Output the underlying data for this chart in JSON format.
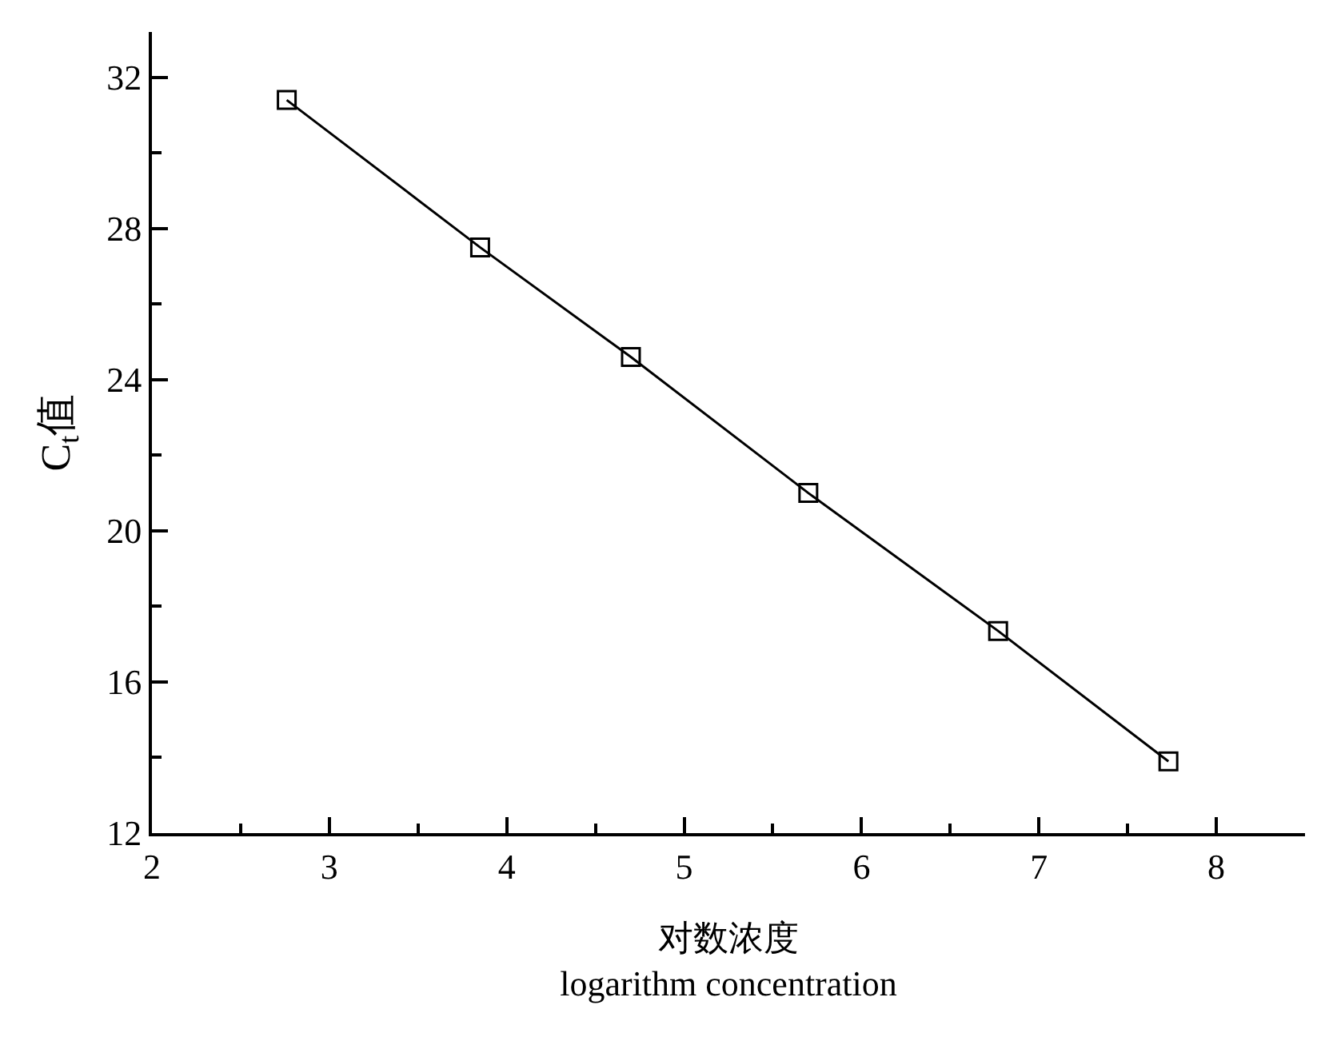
{
  "chart_data": {
    "type": "line",
    "xlabel": "对数浓度\nlogarithm concentration",
    "ylabel": "C$_{t}$值",
    "x": [
      2.76,
      3.85,
      4.7,
      5.7,
      6.77,
      7.73
    ],
    "series": [
      {
        "color": "#000000",
        "values": [
          31.4,
          27.5,
          24.6,
          21.0,
          17.35,
          13.9
        ]
      }
    ],
    "xlim": [
      2,
      8.5
    ],
    "xticks": [
      2,
      3,
      4,
      5,
      6,
      7,
      8
    ],
    "ylim": [
      12,
      33.2
    ],
    "yticks": [
      12,
      16,
      20,
      24,
      28,
      32
    ],
    "marker": "square",
    "line_style": "solid"
  }
}
